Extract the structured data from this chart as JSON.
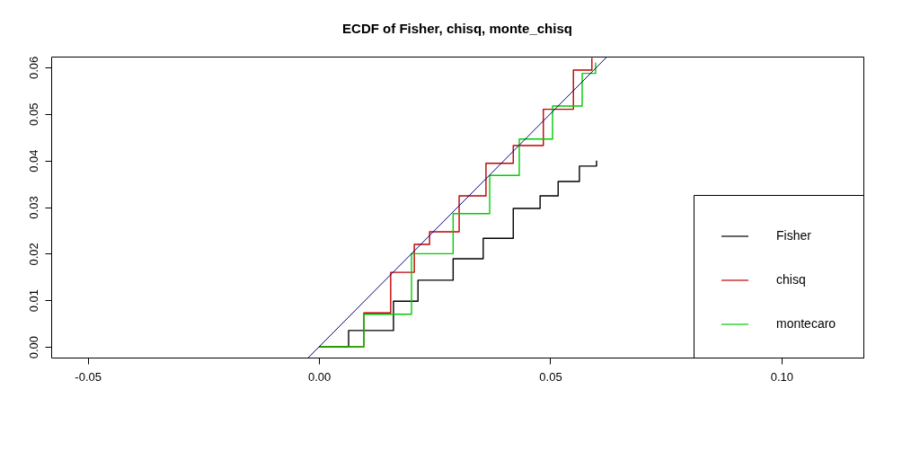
{
  "chart_data": {
    "type": "step",
    "title": "ECDF of Fisher, chisq, monte_chisq",
    "xlim": [
      -0.0579,
      0.1177
    ],
    "ylim": [
      -0.0023,
      0.0623
    ],
    "xticks": [
      {
        "value": -0.05,
        "label": "-0.05"
      },
      {
        "value": 0,
        "label": "0.00"
      },
      {
        "value": 0.05,
        "label": "0.05"
      },
      {
        "value": 0.1,
        "label": "0.10"
      }
    ],
    "yticks": [
      {
        "value": 0,
        "label": "0.00"
      },
      {
        "value": 0.01,
        "label": "0.01"
      },
      {
        "value": 0.02,
        "label": "0.02"
      },
      {
        "value": 0.03,
        "label": "0.03"
      },
      {
        "value": 0.04,
        "label": "0.04"
      },
      {
        "value": 0.05,
        "label": "0.05"
      },
      {
        "value": 0.06,
        "label": "0.06"
      }
    ],
    "grid": false,
    "legend": "bottom right",
    "series": [
      {
        "name": "Fisher",
        "color": "#000000",
        "x": [
          0,
          0.0064,
          0.0161,
          0.0214,
          0.029,
          0.0355,
          0.042,
          0.0478,
          0.0517,
          0.0563,
          0.06
        ],
        "values": [
          0,
          0.0035,
          0.0098,
          0.0143,
          0.0189,
          0.0233,
          0.0297,
          0.0324,
          0.0355,
          0.0388,
          0.04
        ]
      },
      {
        "name": "chisq",
        "color": "#c00000",
        "x": [
          0,
          0.0097,
          0.0155,
          0.0206,
          0.0239,
          0.0303,
          0.0361,
          0.042,
          0.0485,
          0.055,
          0.059
        ],
        "values": [
          0,
          0.0073,
          0.016,
          0.022,
          0.0247,
          0.0324,
          0.0394,
          0.0432,
          0.051,
          0.0594,
          0.062
        ]
      },
      {
        "name": "montecaro",
        "color": "#00cc00",
        "x": [
          0,
          0.0097,
          0.02,
          0.029,
          0.0369,
          0.0433,
          0.0505,
          0.0569,
          0.0598
        ],
        "values": [
          0,
          0.007,
          0.02,
          0.0286,
          0.0368,
          0.0446,
          0.0517,
          0.0587,
          0.061
        ]
      },
      {
        "type": "line",
        "color": "#000080",
        "x": [
          -0.0023,
          0.0623
        ],
        "values": [
          -0.0023,
          0.0623
        ]
      }
    ]
  }
}
